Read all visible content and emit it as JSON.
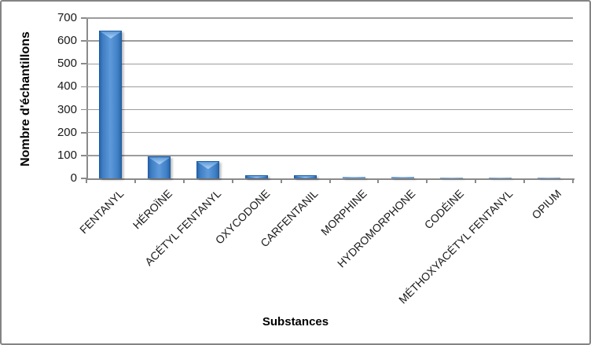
{
  "chart_data": {
    "type": "bar",
    "title": "",
    "xlabel": "Substances",
    "ylabel": "Nombre d'échantillons",
    "categories": [
      "FENTANYL",
      "HÉROÏNE",
      "ACÉTYL FENTANYL",
      "OXYCODONE",
      "CARFENTANIL",
      "MORPHINE",
      "HYDROMORPHONE",
      "CODÉINE",
      "MÉTHOXYACÉTYL FENTANYL",
      "OPIUM"
    ],
    "values": [
      645,
      95,
      75,
      13,
      13,
      6,
      6,
      2,
      2,
      2
    ],
    "ylim": [
      0,
      700
    ],
    "yticks": [
      0,
      100,
      200,
      300,
      400,
      500,
      600,
      700
    ],
    "grid": "horizontal",
    "legend": "none",
    "label_rotation_deg": 45,
    "colors": {
      "bar_fill": "#3f7ec4",
      "bar_edge": "#2966aa",
      "bar_light": "#5e9ada",
      "bar_cap": "#a6cdf4",
      "bar_border": "#1d5ca3",
      "grid": "#9c9c9c",
      "axis": "#8a8a8a",
      "text": "#1a1a1a",
      "frame_border": "#848484",
      "background": "#ffffff"
    }
  }
}
